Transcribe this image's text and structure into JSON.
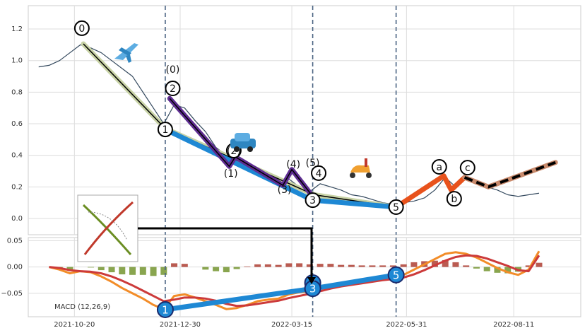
{
  "chart_data": [
    {
      "type": "price-wave",
      "xlim": [
        "2021-09-19",
        "2022-09-25"
      ],
      "ylim": [
        -0.103,
        1.348
      ],
      "yticks": [
        {
          "value": 0,
          "label": "0.0"
        },
        0.2,
        0.4,
        0.6,
        0.8,
        {
          "value": 1,
          "label": "1.0"
        },
        1.2
      ],
      "grid": true,
      "vlines": [
        "2021-12-20",
        "2022-03-29",
        "2022-05-24"
      ],
      "x": [
        "2021-09-26",
        "2021-10-03",
        "2021-10-10",
        "2021-10-17",
        "2021-10-24",
        "2021-10-31",
        "2021-11-07",
        "2021-11-14",
        "2021-11-21",
        "2021-11-28",
        "2021-12-05",
        "2021-12-12",
        "2021-12-19",
        "2021-12-26",
        "2022-01-02",
        "2022-01-09",
        "2022-01-16",
        "2022-01-23",
        "2022-01-30",
        "2022-02-06",
        "2022-02-13",
        "2022-02-20",
        "2022-02-27",
        "2022-03-06",
        "2022-03-13",
        "2022-03-20",
        "2022-03-27",
        "2022-04-03",
        "2022-04-10",
        "2022-04-17",
        "2022-04-24",
        "2022-05-01",
        "2022-05-08",
        "2022-05-15",
        "2022-05-22",
        "2022-05-29",
        "2022-06-05",
        "2022-06-12",
        "2022-06-19",
        "2022-06-26",
        "2022-07-03",
        "2022-07-10",
        "2022-07-17",
        "2022-07-24",
        "2022-07-31",
        "2022-08-07",
        "2022-08-14",
        "2022-08-21",
        "2022-08-28"
      ],
      "series": [
        {
          "color": "#34495e",
          "values": [
            0.96,
            0.97,
            1.0,
            1.05,
            1.1,
            1.08,
            1.05,
            1.0,
            0.95,
            0.9,
            0.8,
            0.7,
            0.6,
            0.72,
            0.7,
            0.62,
            0.55,
            0.45,
            0.4,
            0.36,
            0.33,
            0.3,
            0.27,
            0.22,
            0.25,
            0.2,
            0.17,
            0.22,
            0.2,
            0.18,
            0.15,
            0.14,
            0.12,
            0.1,
            0.09,
            0.1,
            0.11,
            0.13,
            0.18,
            0.26,
            0.2,
            0.25,
            0.22,
            0.2,
            0.18,
            0.15,
            0.14,
            0.15,
            0.16
          ]
        }
      ],
      "waves": [
        {
          "color": "#c8d3a6",
          "core": "#000000",
          "x": [
            "2021-10-26",
            "2021-12-20",
            "2022-03-30",
            "2022-05-24"
          ],
          "values": [
            1.106,
            0.57,
            0.15,
            0.072
          ]
        },
        {
          "color": "#1e88d4",
          "x": [
            "2021-12-20",
            "2022-03-29",
            "2022-05-24"
          ],
          "values": [
            0.564,
            0.116,
            0.072
          ]
        },
        {
          "color": "#5e2d91",
          "core": "#000000",
          "x": [
            "2021-12-23",
            "2022-02-01",
            "2022-02-05",
            "2022-03-09",
            "2022-03-15",
            "2022-03-29"
          ],
          "values": [
            0.76,
            0.33,
            0.39,
            0.21,
            0.31,
            0.14
          ]
        },
        {
          "color": "#e8521c",
          "x": [
            "2022-05-24",
            "2022-06-25",
            "2022-06-30",
            "2022-07-09"
          ],
          "values": [
            0.072,
            0.27,
            0.18,
            0.26
          ]
        },
        {
          "color": "#c98a6c",
          "core": "#000000",
          "core_dashed": true,
          "x": [
            "2022-07-09",
            "2022-07-25",
            "2022-09-08"
          ],
          "values": [
            0.26,
            0.2,
            0.355
          ]
        }
      ],
      "annotations": [
        {
          "text": "0",
          "x": "2021-10-25",
          "y": 1.205,
          "circled": true
        },
        {
          "text": "1",
          "x": "2021-12-20",
          "y": 0.564,
          "circled": true
        },
        {
          "text": "2",
          "x": "2021-12-25",
          "y": 0.824,
          "circled": true
        },
        {
          "text": "(0)",
          "x": "2021-12-25",
          "y": 0.945,
          "circled": false
        },
        {
          "text": "(1)",
          "x": "2022-02-02",
          "y": 0.287,
          "circled": false
        },
        {
          "text": "(2)",
          "x": "2022-02-04",
          "y": 0.43,
          "circled": true
        },
        {
          "text": "(3)",
          "x": "2022-03-10",
          "y": 0.184,
          "circled": false
        },
        {
          "text": "(4)",
          "x": "2022-03-16",
          "y": 0.345,
          "circled": false
        },
        {
          "text": "(5)",
          "x": "2022-03-29",
          "y": 0.354,
          "circled": false
        },
        {
          "text": "4",
          "x": "2022-04-02",
          "y": 0.287,
          "circled": true
        },
        {
          "text": "3",
          "x": "2022-03-29",
          "y": 0.116,
          "circled": true
        },
        {
          "text": "5",
          "x": "2022-05-24",
          "y": 0.072,
          "circled": true
        },
        {
          "text": "a",
          "x": "2022-06-22",
          "y": 0.327,
          "circled": true
        },
        {
          "text": "b",
          "x": "2022-07-02",
          "y": 0.125,
          "circled": true
        },
        {
          "text": "c",
          "x": "2022-07-11",
          "y": 0.322,
          "circled": true
        }
      ]
    },
    {
      "type": "macd",
      "label": "MACD (12,26,9)",
      "xlim": [
        "2021-09-19",
        "2022-09-25"
      ],
      "ylim": [
        -0.0945,
        0.0559
      ],
      "yticks": [
        {
          "value": -0.05,
          "label": "−0.05"
        },
        {
          "value": 0,
          "label": "0.00"
        },
        {
          "value": 0.05,
          "label": "0.05"
        }
      ],
      "xticks": [
        "2021-10-20",
        "2021-12-30",
        "2022-03-15",
        "2022-05-31",
        "2022-08-11"
      ],
      "grid": true,
      "vlines": [
        "2021-12-20",
        "2022-03-29",
        "2022-05-24"
      ],
      "x": [
        "2021-10-03",
        "2021-10-10",
        "2021-10-17",
        "2021-10-24",
        "2021-10-31",
        "2021-11-07",
        "2021-11-14",
        "2021-11-21",
        "2021-11-28",
        "2021-12-05",
        "2021-12-12",
        "2021-12-19",
        "2021-12-26",
        "2022-01-02",
        "2022-01-09",
        "2022-01-16",
        "2022-01-23",
        "2022-01-30",
        "2022-02-06",
        "2022-02-13",
        "2022-02-20",
        "2022-02-27",
        "2022-03-06",
        "2022-03-13",
        "2022-03-20",
        "2022-03-27",
        "2022-04-03",
        "2022-04-10",
        "2022-04-17",
        "2022-04-24",
        "2022-05-01",
        "2022-05-08",
        "2022-05-15",
        "2022-05-22",
        "2022-05-29",
        "2022-06-05",
        "2022-06-12",
        "2022-06-19",
        "2022-06-26",
        "2022-07-03",
        "2022-07-10",
        "2022-07-17",
        "2022-07-24",
        "2022-07-31",
        "2022-08-07",
        "2022-08-14",
        "2022-08-21",
        "2022-08-28"
      ],
      "histogram": {
        "positive_color": "#a93226",
        "negative_color": "#6b8e23",
        "values": [
          0.0,
          -0.003,
          -0.006,
          0.0,
          -0.001,
          -0.006,
          -0.01,
          -0.014,
          -0.015,
          -0.015,
          -0.017,
          -0.015,
          0.007,
          0.006,
          0.0,
          -0.005,
          -0.008,
          -0.01,
          -0.004,
          0.001,
          0.005,
          0.005,
          0.004,
          0.007,
          0.007,
          0.005,
          0.006,
          0.006,
          0.004,
          0.004,
          0.003,
          0.003,
          0.003,
          0.003,
          0.005,
          0.009,
          0.011,
          0.012,
          0.013,
          0.009,
          0.003,
          -0.003,
          -0.008,
          -0.011,
          -0.012,
          -0.009,
          0.003,
          0.008
        ]
      },
      "series": [
        {
          "color": "#f28c28",
          "values": [
            0.0,
            -0.005,
            -0.012,
            -0.008,
            -0.01,
            -0.018,
            -0.028,
            -0.04,
            -0.05,
            -0.06,
            -0.072,
            -0.08,
            -0.055,
            -0.052,
            -0.058,
            -0.065,
            -0.072,
            -0.08,
            -0.078,
            -0.072,
            -0.065,
            -0.062,
            -0.06,
            -0.052,
            -0.048,
            -0.046,
            -0.04,
            -0.035,
            -0.033,
            -0.03,
            -0.028,
            -0.025,
            -0.022,
            -0.02,
            -0.015,
            -0.005,
            0.005,
            0.015,
            0.025,
            0.028,
            0.025,
            0.018,
            0.008,
            -0.002,
            -0.01,
            -0.015,
            -0.005,
            0.03
          ]
        },
        {
          "color": "#cc3a3a",
          "values": [
            0.0,
            -0.002,
            -0.006,
            -0.008,
            -0.009,
            -0.012,
            -0.018,
            -0.026,
            -0.035,
            -0.045,
            -0.055,
            -0.065,
            -0.062,
            -0.058,
            -0.058,
            -0.06,
            -0.064,
            -0.07,
            -0.074,
            -0.073,
            -0.07,
            -0.067,
            -0.064,
            -0.059,
            -0.055,
            -0.051,
            -0.046,
            -0.041,
            -0.037,
            -0.034,
            -0.031,
            -0.028,
            -0.025,
            -0.023,
            -0.02,
            -0.014,
            -0.006,
            0.003,
            0.012,
            0.019,
            0.022,
            0.021,
            0.016,
            0.009,
            0.002,
            -0.006,
            -0.008,
            0.022
          ]
        }
      ],
      "waves": [
        {
          "color": "#1e88d4",
          "x": [
            "2021-12-20",
            "2022-03-29",
            "2022-05-24"
          ],
          "values": [
            -0.081,
            -0.041,
            -0.015
          ]
        }
      ],
      "marker_color": "#1e88d4",
      "annotations": [
        {
          "text": "1",
          "x": "2021-12-20",
          "y": -0.081,
          "circled": true
        },
        {
          "text": "3",
          "x": "2022-03-29",
          "y": -0.03,
          "circled": true
        },
        {
          "text": "3",
          "x": "2022-03-29",
          "y": -0.041,
          "circled": true
        },
        {
          "text": "5",
          "x": "2022-05-24",
          "y": -0.015,
          "circled": true
        }
      ]
    }
  ]
}
